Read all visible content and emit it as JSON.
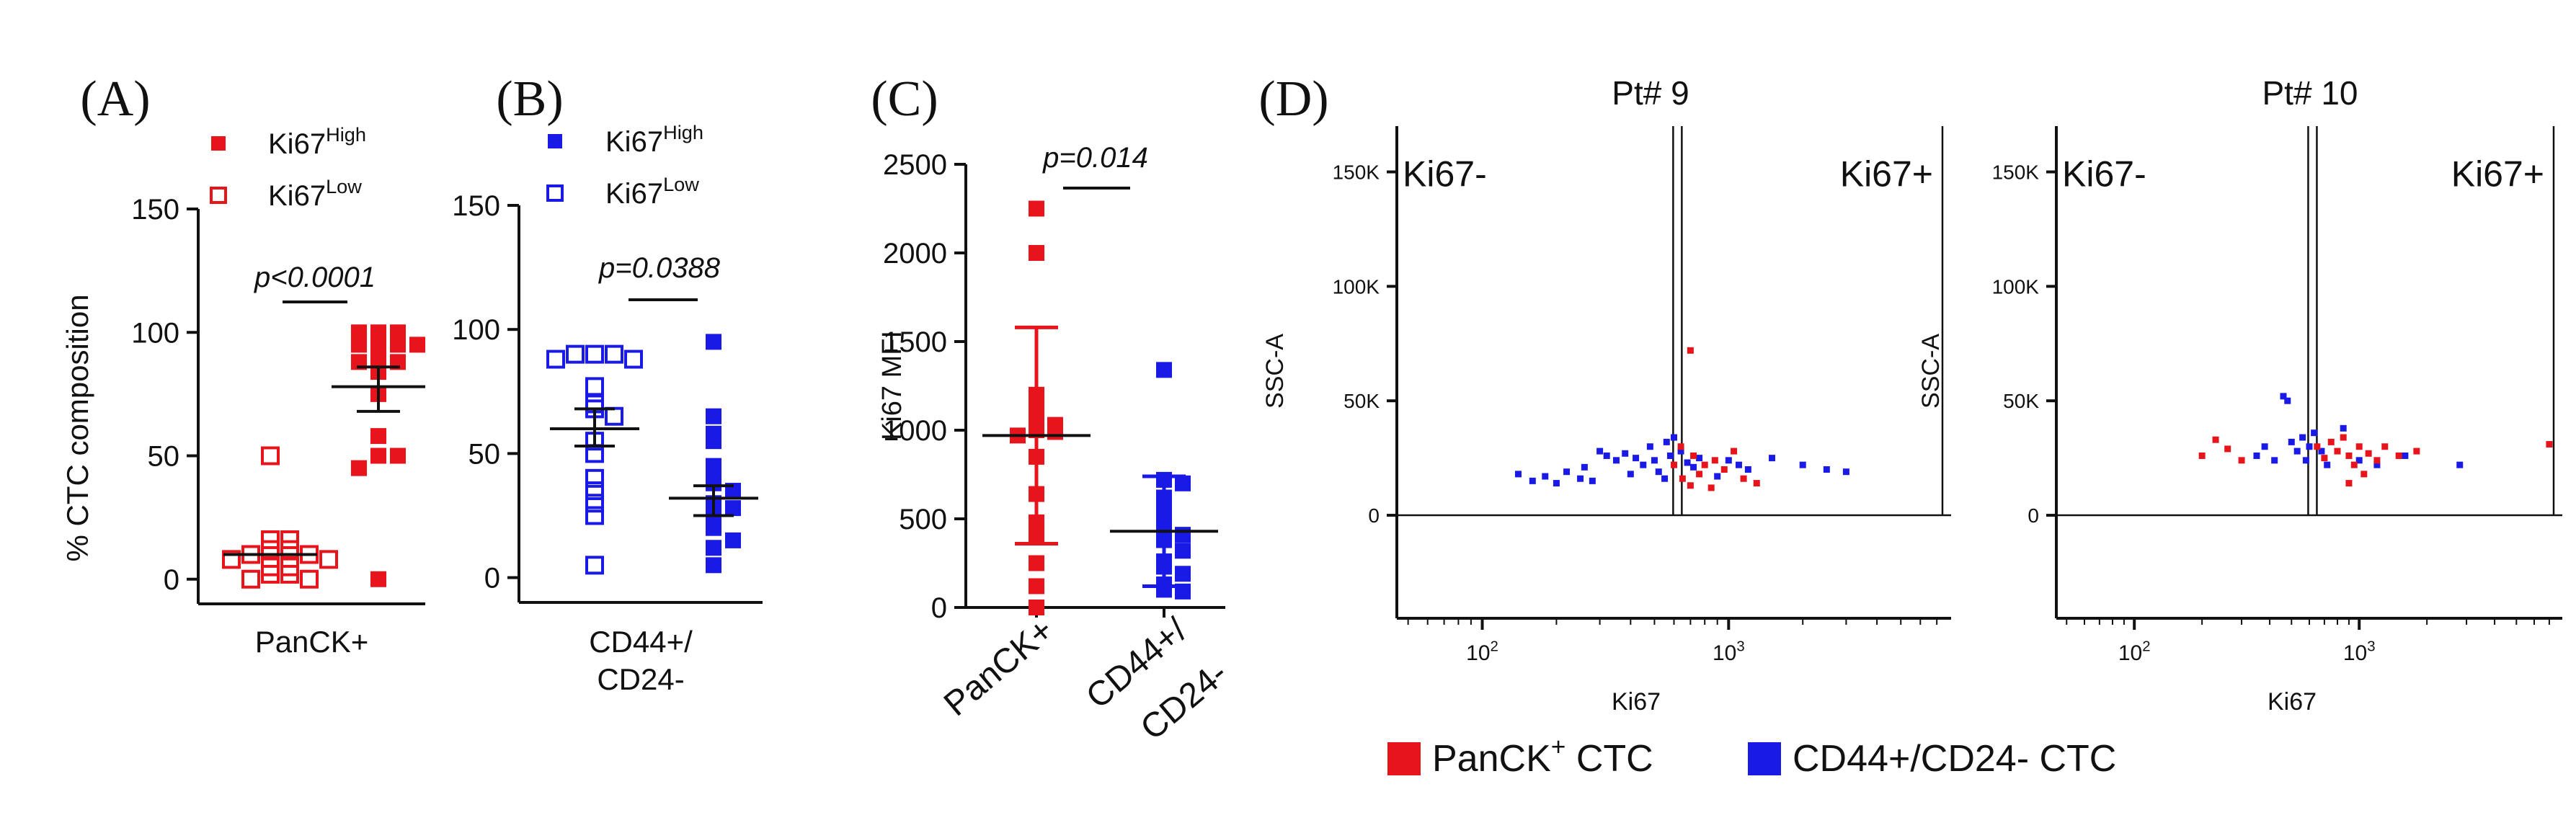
{
  "colors": {
    "red": "#e8141b",
    "blue": "#1a1ae6",
    "black": "#111111"
  },
  "chart_data": [
    {
      "panel": "(A)",
      "type": "scatter",
      "ylabel": "% CTC composition",
      "xlabel": "PanCK+",
      "ylim": [
        0,
        150
      ],
      "yticks": [
        0,
        50,
        100,
        150
      ],
      "legend": [
        {
          "label": "Ki67",
          "sup": "High",
          "marker": "filled-square",
          "color": "#e8141b"
        },
        {
          "label": "Ki67",
          "sup": "Low",
          "marker": "open-square",
          "color": "#e8141b"
        }
      ],
      "pvalue": "p<0.0001",
      "series": [
        {
          "name": "Ki67 Low",
          "marker": "open-square",
          "color": "#e8141b",
          "mean": 10,
          "values": [
            50,
            16,
            16,
            12,
            12,
            10,
            10,
            8,
            8,
            5,
            5,
            2,
            2,
            0,
            0
          ]
        },
        {
          "name": "Ki67 High",
          "marker": "filled-square",
          "color": "#e8141b",
          "mean": 78,
          "sem_low": 68,
          "sem_high": 86,
          "values": [
            100,
            100,
            100,
            95,
            95,
            95,
            95,
            90,
            88,
            88,
            84,
            75,
            58,
            50,
            50,
            45,
            0
          ]
        }
      ]
    },
    {
      "panel": "(B)",
      "type": "scatter",
      "ylabel": "",
      "xlabel_lines": [
        "CD44+/",
        "CD24-"
      ],
      "ylim": [
        0,
        150
      ],
      "yticks": [
        0,
        50,
        100,
        150
      ],
      "legend": [
        {
          "label": "Ki67",
          "sup": "High",
          "marker": "filled-square",
          "color": "#1a1ae6"
        },
        {
          "label": "Ki67",
          "sup": "Low",
          "marker": "open-square",
          "color": "#1a1ae6"
        }
      ],
      "pvalue": "p=0.0388",
      "series": [
        {
          "name": "Ki67 Low",
          "marker": "open-square",
          "color": "#1a1ae6",
          "mean": 60,
          "sem_low": 53,
          "sem_high": 68,
          "values": [
            90,
            90,
            90,
            88,
            88,
            77,
            70,
            68,
            65,
            55,
            50,
            40,
            35,
            30,
            25,
            5
          ]
        },
        {
          "name": "Ki67 High",
          "marker": "filled-square",
          "color": "#1a1ae6",
          "mean": 32,
          "sem_low": 25,
          "sem_high": 37,
          "values": [
            95,
            65,
            58,
            55,
            45,
            42,
            38,
            35,
            30,
            28,
            25,
            20,
            15,
            12,
            5
          ]
        }
      ]
    },
    {
      "panel": "(C)",
      "type": "scatter",
      "ylabel": "Ki67 MFI",
      "ylim": [
        0,
        2500
      ],
      "yticks": [
        0,
        500,
        1000,
        1500,
        2000,
        2500
      ],
      "categories": [
        "PanCK+",
        "CD44+/\nCD24-"
      ],
      "pvalue": "p=0.014",
      "series": [
        {
          "name": "PanCK+",
          "marker": "filled-square",
          "color": "#e8141b",
          "mean": 970,
          "sd_low": 360,
          "sd_high": 1580,
          "values": [
            2250,
            2000,
            1200,
            1120,
            1050,
            1030,
            1000,
            990,
            970,
            850,
            640,
            480,
            400,
            250,
            120,
            0
          ]
        },
        {
          "name": "CD44+/CD24-",
          "marker": "filled-square",
          "color": "#1a1ae6",
          "mean": 430,
          "sd_low": 120,
          "sd_high": 740,
          "values": [
            1340,
            720,
            700,
            620,
            560,
            520,
            450,
            410,
            380,
            320,
            260,
            230,
            190,
            130,
            100,
            90
          ]
        }
      ]
    },
    {
      "panel": "(D)",
      "type": "flow-cytometry-scatter",
      "legend": [
        {
          "label": "PanCK",
          "sup": "+",
          "rest": " CTC",
          "color": "#e8141b"
        },
        {
          "label": "CD44+/CD24- CTC",
          "sup": "",
          "rest": "",
          "color": "#1a1ae6"
        }
      ],
      "plots": [
        {
          "title": "Pt# 9",
          "xlabel": "Ki67",
          "ylabel": "SSC-A",
          "yticks": [
            "0",
            "50K",
            "100K",
            "150K"
          ],
          "xticks": [
            {
              "base": "10",
              "exp": "2"
            },
            {
              "base": "10",
              "exp": "3"
            }
          ],
          "gate_labels": [
            "Ki67-",
            "Ki67+"
          ],
          "gate_x": 620,
          "points_red": [
            [
              700,
              72000
            ],
            [
              760,
              18000
            ],
            [
              800,
              22000
            ],
            [
              880,
              24000
            ],
            [
              960,
              20000
            ],
            [
              1050,
              28000
            ],
            [
              1150,
              16000
            ],
            [
              1300,
              14000
            ],
            [
              700,
              13000
            ],
            [
              640,
              30000
            ],
            [
              650,
              16000
            ],
            [
              720,
              26000
            ],
            [
              600,
              22000
            ],
            [
              850,
              12000
            ]
          ],
          "points_blue": [
            [
              140,
              18000
            ],
            [
              160,
              15000
            ],
            [
              180,
              17000
            ],
            [
              200,
              14000
            ],
            [
              220,
              19000
            ],
            [
              250,
              16000
            ],
            [
              280,
              15000
            ],
            [
              300,
              28000
            ],
            [
              320,
              26000
            ],
            [
              350,
              24000
            ],
            [
              380,
              27000
            ],
            [
              420,
              25000
            ],
            [
              450,
              22000
            ],
            [
              480,
              30000
            ],
            [
              500,
              24000
            ],
            [
              520,
              19000
            ],
            [
              560,
              32000
            ],
            [
              580,
              26000
            ],
            [
              600,
              34000
            ],
            [
              640,
              28000
            ],
            [
              680,
              23000
            ],
            [
              720,
              21000
            ],
            [
              760,
              25000
            ],
            [
              900,
              17000
            ],
            [
              1000,
              24000
            ],
            [
              1100,
              22000
            ],
            [
              1200,
              20000
            ],
            [
              1500,
              25000
            ],
            [
              2000,
              22000
            ],
            [
              2500,
              20000
            ],
            [
              3000,
              19000
            ],
            [
              260,
              21000
            ],
            [
              400,
              18000
            ],
            [
              550,
              16000
            ]
          ]
        },
        {
          "title": "Pt# 10",
          "xlabel": "Ki67",
          "ylabel": "SSC-A",
          "yticks": [
            "0",
            "50K",
            "100K",
            "150K"
          ],
          "xticks": [
            {
              "base": "10",
              "exp": "2"
            },
            {
              "base": "10",
              "exp": "3"
            }
          ],
          "gate_labels": [
            "Ki67-",
            "Ki67+"
          ],
          "gate_x": 620,
          "points_red": [
            [
              200,
              26000
            ],
            [
              230,
              33000
            ],
            [
              260,
              29000
            ],
            [
              300,
              24000
            ],
            [
              650,
              30000
            ],
            [
              700,
              25000
            ],
            [
              750,
              32000
            ],
            [
              800,
              28000
            ],
            [
              850,
              34000
            ],
            [
              900,
              26000
            ],
            [
              950,
              22000
            ],
            [
              1000,
              30000
            ],
            [
              1050,
              18000
            ],
            [
              1100,
              27000
            ],
            [
              1200,
              24000
            ],
            [
              1300,
              30000
            ],
            [
              1500,
              26000
            ],
            [
              1800,
              28000
            ],
            [
              900,
              14000
            ],
            [
              7000,
              31000
            ]
          ],
          "points_blue": [
            [
              350,
              26000
            ],
            [
              380,
              30000
            ],
            [
              420,
              24000
            ],
            [
              460,
              52000
            ],
            [
              480,
              50000
            ],
            [
              500,
              32000
            ],
            [
              530,
              28000
            ],
            [
              560,
              34000
            ],
            [
              580,
              24000
            ],
            [
              600,
              30000
            ],
            [
              630,
              36000
            ],
            [
              680,
              28000
            ],
            [
              720,
              22000
            ],
            [
              850,
              38000
            ],
            [
              1000,
              24000
            ],
            [
              1200,
              22000
            ],
            [
              1600,
              26000
            ],
            [
              2800,
              22000
            ]
          ]
        }
      ]
    }
  ]
}
